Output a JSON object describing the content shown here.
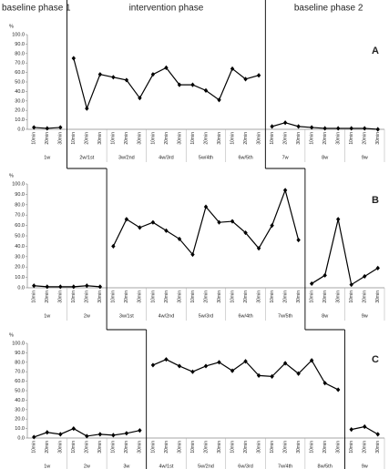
{
  "chart_data": {
    "type": "line",
    "phase_titles": [
      "baseline phase 1",
      "intervention phase",
      "baseline phase 2"
    ],
    "y_label": "%",
    "ylim": [
      0,
      100
    ],
    "yticks": [
      {
        "value": 0,
        "label": "0.0"
      },
      {
        "value": 10,
        "label": "10.0"
      },
      {
        "value": 20,
        "label": "20.0"
      },
      {
        "value": 30,
        "label": "30.0"
      },
      {
        "value": 40,
        "label": "40.0"
      },
      {
        "value": 50,
        "label": "50.0"
      },
      {
        "value": 60,
        "label": "60.0"
      },
      {
        "value": 70,
        "label": "70.0"
      },
      {
        "value": 80,
        "label": "80.0"
      },
      {
        "value": 90,
        "label": "90.0"
      },
      {
        "value": 100,
        "label": "100.0"
      }
    ],
    "color": "#000000",
    "panels": [
      {
        "label": "A",
        "phases": [
          [
            {
              "label": "1w",
              "categories": [
                "10min",
                "20min",
                "30min"
              ],
              "values": [
                2,
                1,
                2
              ]
            }
          ],
          [
            {
              "label": "2w/1st",
              "categories": [
                "10min",
                "20min",
                "30min"
              ],
              "values": [
                75,
                22,
                58
              ]
            },
            {
              "label": "3w/2nd",
              "categories": [
                "10min",
                "20min",
                "30min"
              ],
              "values": [
                55,
                52,
                33
              ]
            },
            {
              "label": "4w/3rd",
              "categories": [
                "10min",
                "20min",
                "30min"
              ],
              "values": [
                58,
                65,
                47
              ]
            },
            {
              "label": "5w/4th",
              "categories": [
                "10min",
                "20min",
                "30min"
              ],
              "values": [
                47,
                41,
                31
              ]
            },
            {
              "label": "6w/5th",
              "categories": [
                "10min",
                "20min",
                "30min"
              ],
              "values": [
                64,
                53,
                57
              ]
            }
          ],
          [
            {
              "label": "7w",
              "categories": [
                "10min",
                "20min",
                "30min"
              ],
              "values": [
                3,
                7,
                3
              ]
            },
            {
              "label": "8w",
              "categories": [
                "10min",
                "20min",
                "30min"
              ],
              "values": [
                2,
                1,
                1
              ]
            },
            {
              "label": "9w",
              "categories": [
                "10min",
                "20min",
                "30min"
              ],
              "values": [
                1,
                1,
                0
              ]
            }
          ]
        ]
      },
      {
        "label": "B",
        "phases": [
          [
            {
              "label": "1w",
              "categories": [
                "10min",
                "20min",
                "30min"
              ],
              "values": [
                2,
                1,
                1
              ]
            },
            {
              "label": "2w",
              "categories": [
                "10min",
                "20min",
                "30min"
              ],
              "values": [
                1,
                2,
                1
              ]
            }
          ],
          [
            {
              "label": "3w/1st",
              "categories": [
                "10min",
                "20min",
                "30min"
              ],
              "values": [
                40,
                66,
                58
              ]
            },
            {
              "label": "4w/2nd",
              "categories": [
                "10min",
                "20min",
                "30min"
              ],
              "values": [
                63,
                55,
                47
              ]
            },
            {
              "label": "5w/3rd",
              "categories": [
                "10min",
                "20min",
                "30min"
              ],
              "values": [
                32,
                78,
                63
              ]
            },
            {
              "label": "6w/4th",
              "categories": [
                "10min",
                "20min",
                "30min"
              ],
              "values": [
                64,
                53,
                38
              ]
            },
            {
              "label": "7w/5th",
              "categories": [
                "10min",
                "20min",
                "30min"
              ],
              "values": [
                60,
                94,
                46
              ]
            }
          ],
          [
            {
              "label": "8w",
              "categories": [
                "10min",
                "20min",
                "30min"
              ],
              "values": [
                4,
                12,
                66
              ]
            },
            {
              "label": "9w",
              "categories": [
                "10min",
                "20min",
                "30min"
              ],
              "values": [
                3,
                11,
                19
              ]
            }
          ]
        ]
      },
      {
        "label": "C",
        "phases": [
          [
            {
              "label": "1w",
              "categories": [
                "10min",
                "20min",
                "30min"
              ],
              "values": [
                1,
                6,
                4
              ]
            },
            {
              "label": "2w",
              "categories": [
                "10min",
                "20min",
                "30min"
              ],
              "values": [
                10,
                2,
                4
              ]
            },
            {
              "label": "3w",
              "categories": [
                "10min",
                "20min",
                "30min"
              ],
              "values": [
                3,
                5,
                8
              ]
            }
          ],
          [
            {
              "label": "4w/1st",
              "categories": [
                "10min",
                "20min",
                "30min"
              ],
              "values": [
                77,
                83,
                76
              ]
            },
            {
              "label": "5w/2nd",
              "categories": [
                "10min",
                "20min",
                "30min"
              ],
              "values": [
                70,
                76,
                80
              ]
            },
            {
              "label": "6w/3rd",
              "categories": [
                "10min",
                "20min",
                "30min"
              ],
              "values": [
                71,
                81,
                66
              ]
            },
            {
              "label": "7w/4th",
              "categories": [
                "10min",
                "20min",
                "30min"
              ],
              "values": [
                65,
                79,
                68
              ]
            },
            {
              "label": "8w/5th",
              "categories": [
                "10min",
                "20min",
                "30min"
              ],
              "values": [
                82,
                58,
                51
              ]
            }
          ],
          [
            {
              "label": "9w",
              "categories": [
                "10min",
                "20min",
                "30min"
              ],
              "values": [
                9,
                12,
                4
              ]
            }
          ]
        ]
      }
    ]
  }
}
